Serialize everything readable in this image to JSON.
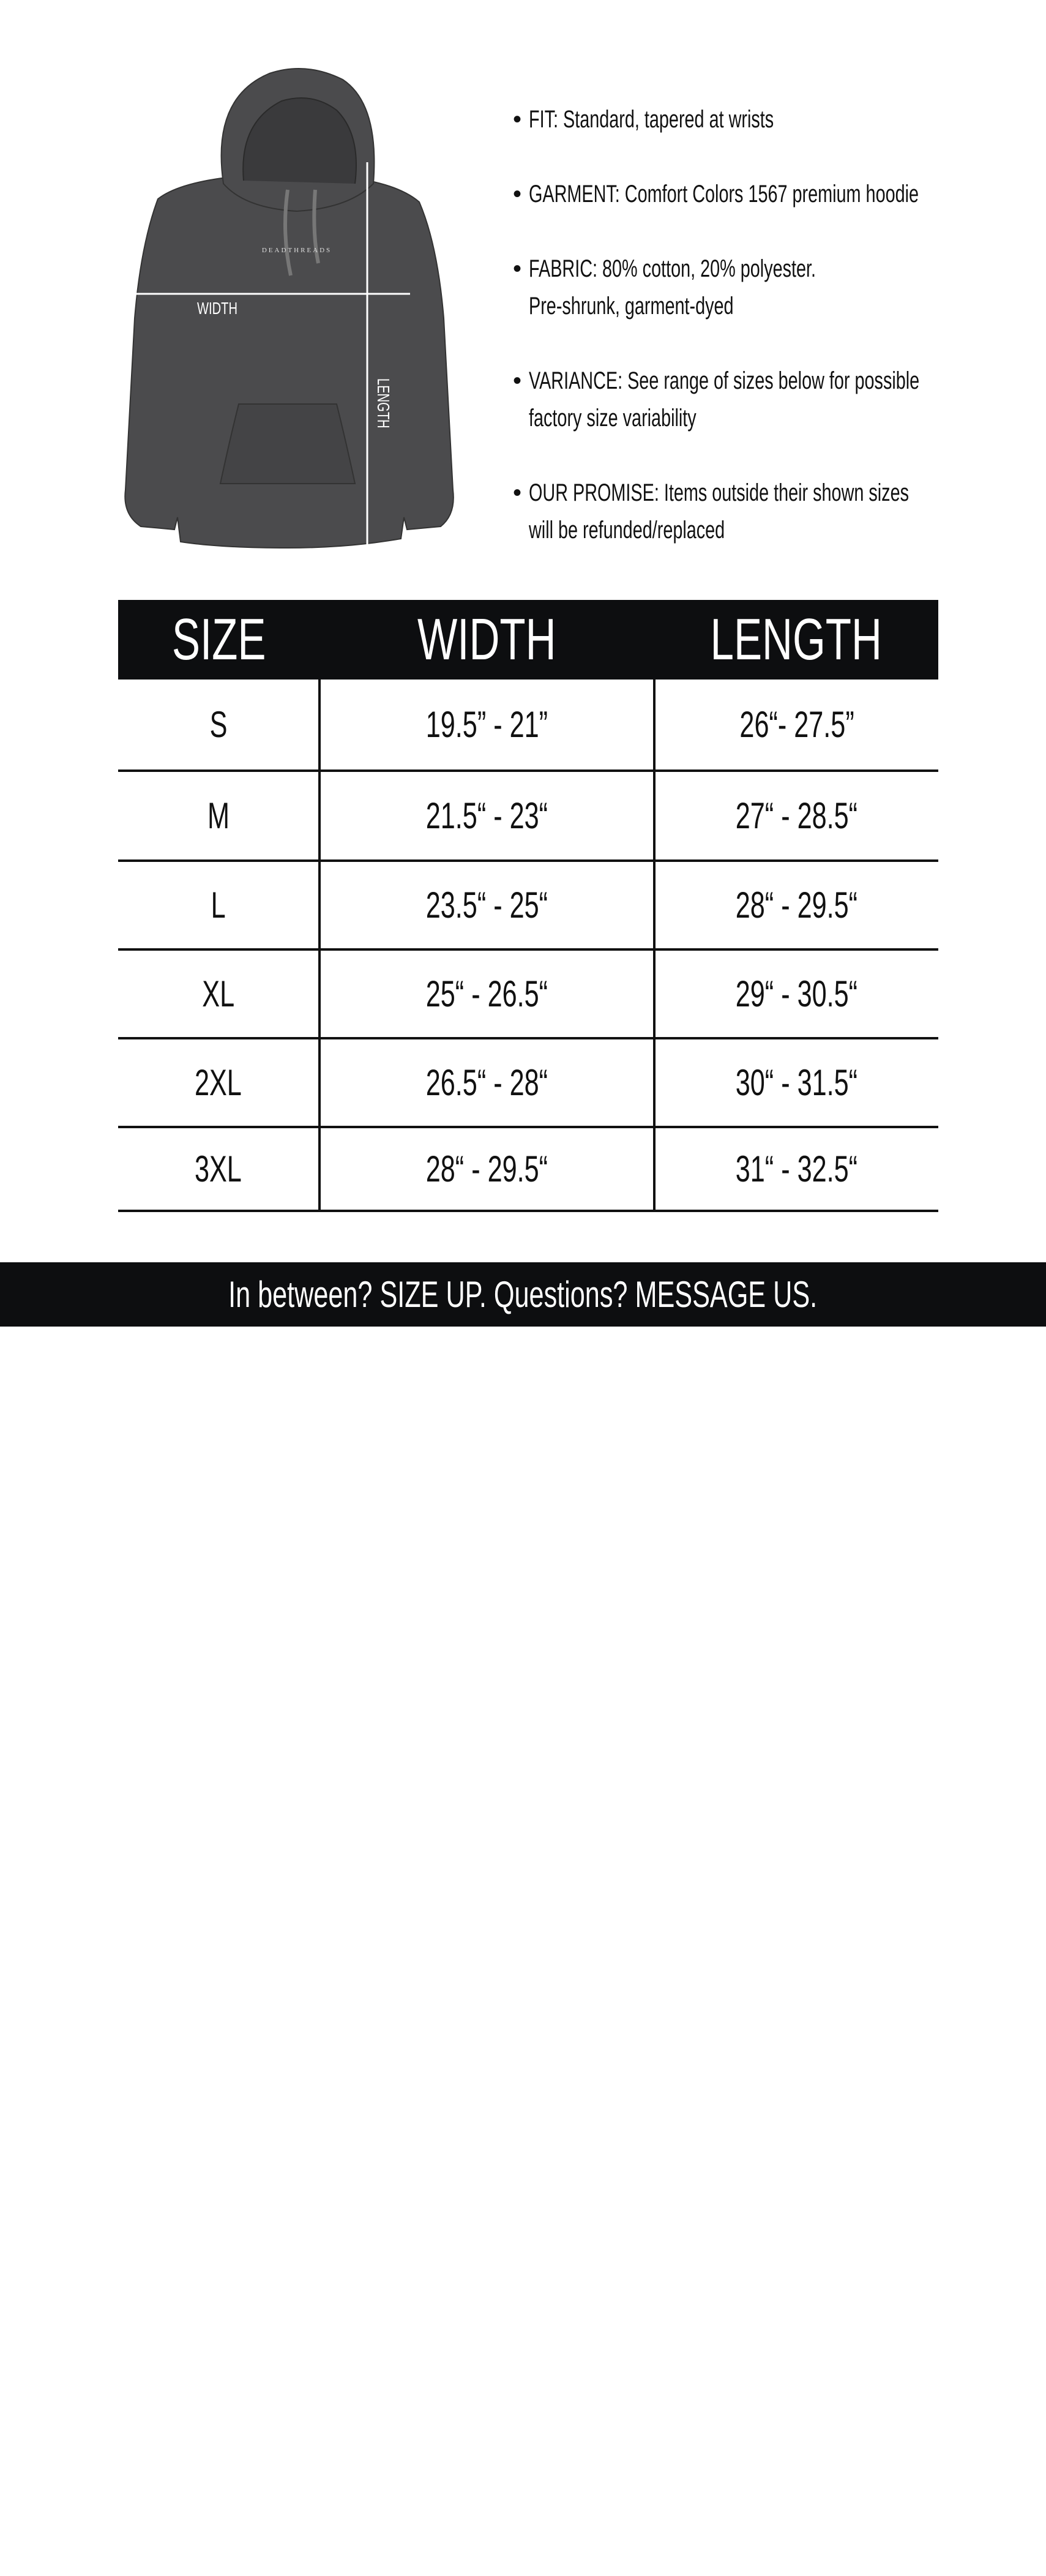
{
  "hoodie": {
    "brand_print": "DEADTHREADS",
    "width_label": "WIDTH",
    "length_label": "LENGTH",
    "color": "#4a4a4c"
  },
  "bullets": [
    {
      "lines": [
        "FIT: Standard, tapered at wrists"
      ]
    },
    {
      "lines": [
        "GARMENT: Comfort Colors 1567 premium hoodie"
      ]
    },
    {
      "lines": [
        "FABRIC: 80% cotton, 20% polyester.",
        "Pre-shrunk, garment-dyed"
      ]
    },
    {
      "lines": [
        "VARIANCE: See range of sizes below for possible",
        "factory size variability"
      ]
    },
    {
      "lines": [
        "OUR PROMISE: Items outside their shown sizes",
        "will be refunded/replaced"
      ]
    }
  ],
  "table": {
    "headers": [
      "SIZE",
      "WIDTH",
      "LENGTH"
    ],
    "rows": [
      [
        "S",
        "19.5” - 21”",
        "26“- 27.5”"
      ],
      [
        "M",
        "21.5“ - 23“",
        "27“ - 28.5“"
      ],
      [
        "L",
        "23.5“ - 25“",
        "28“ - 29.5“"
      ],
      [
        "XL",
        "25“ - 26.5“",
        "29“ - 30.5“"
      ],
      [
        "2XL",
        "26.5“ - 28“",
        "30“ - 31.5“"
      ],
      [
        "3XL",
        "28“ - 29.5“",
        "31“ - 32.5“"
      ]
    ]
  },
  "footer": {
    "text": "In between? SIZE UP. Questions? MESSAGE US.",
    "logo_icon": "three-skulls-logo",
    "background": "#0d0e10"
  }
}
